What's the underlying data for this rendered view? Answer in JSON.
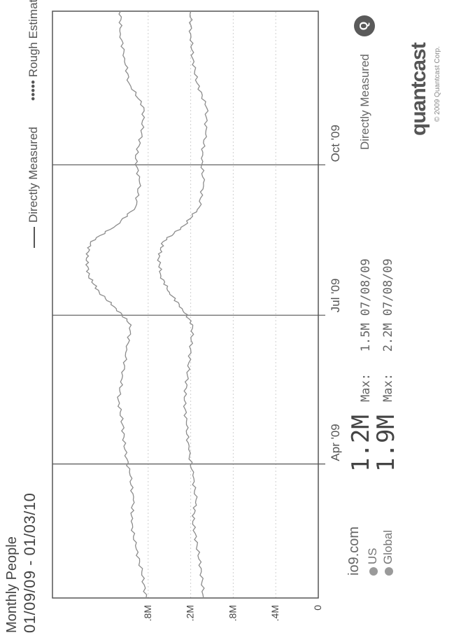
{
  "header": {
    "title": "Monthly People",
    "date_range": "01/09/09 - 01/03/10"
  },
  "legend": {
    "directly_measured": "Directly Measured",
    "rough_estimate": "Rough Estimate",
    "rough_marker": "•••••"
  },
  "summary": {
    "site": "io9.com",
    "rows": [
      {
        "region": "US",
        "value": "1.2M",
        "max_label": "Max:",
        "max_value": "1.5M",
        "max_date": "07/08/09"
      },
      {
        "region": "Global",
        "value": "1.9M",
        "max_label": "Max:",
        "max_value": "2.2M",
        "max_date": "07/08/09"
      }
    ]
  },
  "footer": {
    "directly_measured": "Directly Measured",
    "badge_letter": "Q",
    "logo": "quantcast",
    "copyright": "© 2009 Quantcast Corp."
  },
  "colors": {
    "line": "#8c8c8c",
    "frame": "#555555",
    "grid": "#cfcfcf",
    "dot": "#9a9a9a"
  },
  "chart_data": {
    "type": "line",
    "x_range": [
      "2009-01-09",
      "2010-01-03"
    ],
    "x_tick_labels": [
      {
        "label": "Apr '09",
        "date": "2009-04-01"
      },
      {
        "label": "Jul '09",
        "date": "2009-07-01"
      },
      {
        "label": "Oct '09",
        "date": "2009-10-01"
      }
    ],
    "y_tick_labels": [
      {
        "label": ".4M",
        "value": 0.4
      },
      {
        "label": ".8M",
        "value": 0.8
      },
      {
        "label": ".2M",
        "value": 1.2
      },
      {
        "label": ".8M",
        "value": 1.6
      },
      {
        "label": "0",
        "value": 0
      }
    ],
    "ylim": [
      0,
      2.5
    ],
    "grid": true,
    "series": [
      {
        "name": "Global",
        "points": [
          [
            "2009-01-09",
            1.62
          ],
          [
            "2009-01-25",
            1.66
          ],
          [
            "2009-02-10",
            1.72
          ],
          [
            "2009-02-25",
            1.76
          ],
          [
            "2009-03-10",
            1.74
          ],
          [
            "2009-03-25",
            1.77
          ],
          [
            "2009-04-10",
            1.82
          ],
          [
            "2009-04-25",
            1.84
          ],
          [
            "2009-05-10",
            1.88
          ],
          [
            "2009-05-25",
            1.84
          ],
          [
            "2009-06-10",
            1.8
          ],
          [
            "2009-06-25",
            1.76
          ],
          [
            "2009-07-05",
            1.9
          ],
          [
            "2009-07-15",
            2.06
          ],
          [
            "2009-07-25",
            2.16
          ],
          [
            "2009-08-05",
            2.18
          ],
          [
            "2009-08-15",
            2.14
          ],
          [
            "2009-08-25",
            1.9
          ],
          [
            "2009-09-05",
            1.72
          ],
          [
            "2009-09-20",
            1.68
          ],
          [
            "2009-10-05",
            1.72
          ],
          [
            "2009-10-20",
            1.66
          ],
          [
            "2009-11-05",
            1.64
          ],
          [
            "2009-11-20",
            1.78
          ],
          [
            "2009-12-05",
            1.82
          ],
          [
            "2009-12-20",
            1.86
          ],
          [
            "2010-01-03",
            1.86
          ]
        ]
      },
      {
        "name": "US",
        "points": [
          [
            "2009-01-09",
            1.08
          ],
          [
            "2009-01-25",
            1.1
          ],
          [
            "2009-02-10",
            1.14
          ],
          [
            "2009-02-25",
            1.18
          ],
          [
            "2009-03-10",
            1.15
          ],
          [
            "2009-03-25",
            1.18
          ],
          [
            "2009-04-10",
            1.22
          ],
          [
            "2009-04-25",
            1.24
          ],
          [
            "2009-05-10",
            1.26
          ],
          [
            "2009-05-25",
            1.23
          ],
          [
            "2009-06-10",
            1.2
          ],
          [
            "2009-06-25",
            1.18
          ],
          [
            "2009-07-05",
            1.28
          ],
          [
            "2009-07-15",
            1.4
          ],
          [
            "2009-07-25",
            1.48
          ],
          [
            "2009-08-05",
            1.5
          ],
          [
            "2009-08-15",
            1.46
          ],
          [
            "2009-08-25",
            1.26
          ],
          [
            "2009-09-05",
            1.12
          ],
          [
            "2009-09-20",
            1.08
          ],
          [
            "2009-10-05",
            1.1
          ],
          [
            "2009-10-20",
            1.06
          ],
          [
            "2009-11-05",
            1.05
          ],
          [
            "2009-11-20",
            1.14
          ],
          [
            "2009-12-05",
            1.18
          ],
          [
            "2009-12-20",
            1.2
          ],
          [
            "2010-01-03",
            1.2
          ]
        ]
      }
    ]
  }
}
